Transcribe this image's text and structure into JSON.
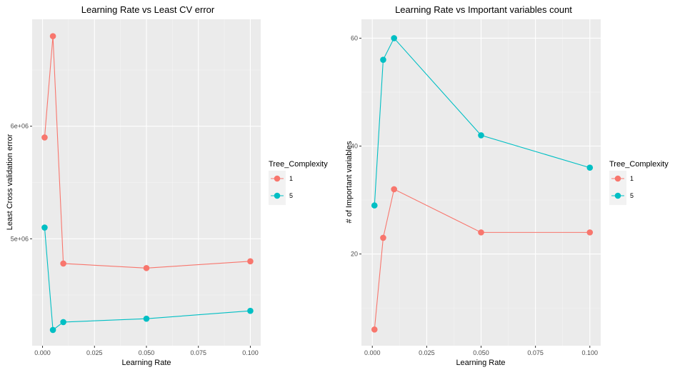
{
  "chart_data": [
    {
      "type": "line",
      "title": "Learning Rate vs Least CV error",
      "xlabel": "Learning Rate",
      "ylabel": "Least Cross validation error",
      "x_ticks": [
        0,
        0.025,
        0.05,
        0.075,
        0.1
      ],
      "x_tick_labels": [
        "0.000",
        "0.025",
        "0.050",
        "0.075",
        "0.100"
      ],
      "y_ticks": [
        5000000,
        6000000
      ],
      "y_tick_labels": [
        "5e+06",
        "6e+06"
      ],
      "xlim": [
        -0.005,
        0.105
      ],
      "ylim": [
        4050000,
        6950000
      ],
      "grid": true,
      "legend_title": "Tree_Complexity",
      "legend_position": "right",
      "series": [
        {
          "name": "1",
          "color": "#F8766D",
          "x": [
            0.001,
            0.005,
            0.01,
            0.05,
            0.1
          ],
          "y": [
            5900000,
            6800000,
            4780000,
            4740000,
            4800000
          ]
        },
        {
          "name": "5",
          "color": "#00BFC4",
          "x": [
            0.001,
            0.005,
            0.01,
            0.05,
            0.1
          ],
          "y": [
            5100000,
            4190000,
            4260000,
            4290000,
            4360000
          ]
        }
      ]
    },
    {
      "type": "line",
      "title": "Learning Rate vs Important variables count",
      "xlabel": "Learning Rate",
      "ylabel": "# of Important variables",
      "x_ticks": [
        0,
        0.025,
        0.05,
        0.075,
        0.1
      ],
      "x_tick_labels": [
        "0.000",
        "0.025",
        "0.050",
        "0.075",
        "0.100"
      ],
      "y_ticks": [
        20,
        40,
        60
      ],
      "y_tick_labels": [
        "20",
        "40",
        "60"
      ],
      "xlim": [
        -0.005,
        0.105
      ],
      "ylim": [
        3,
        63.5
      ],
      "grid": true,
      "legend_title": "Tree_Complexity",
      "legend_position": "right",
      "series": [
        {
          "name": "1",
          "color": "#F8766D",
          "x": [
            0.001,
            0.005,
            0.01,
            0.05,
            0.1
          ],
          "y": [
            6,
            23,
            32,
            24,
            24
          ]
        },
        {
          "name": "5",
          "color": "#00BFC4",
          "x": [
            0.001,
            0.005,
            0.01,
            0.05,
            0.1
          ],
          "y": [
            29,
            56,
            60,
            42,
            36
          ]
        }
      ]
    }
  ]
}
